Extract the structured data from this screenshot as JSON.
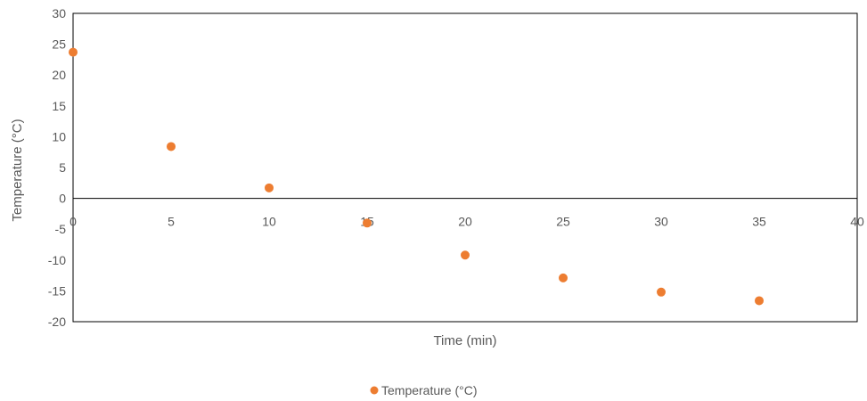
{
  "chart_data": {
    "type": "scatter",
    "title": "",
    "xlabel": "Time (min)",
    "ylabel": "Temperature (°C)",
    "xlim": [
      0,
      40
    ],
    "ylim": [
      -20,
      30
    ],
    "x_ticks": [
      "0",
      "5",
      "10",
      "15",
      "20",
      "25",
      "30",
      "35",
      "40"
    ],
    "y_ticks": [
      "30",
      "25",
      "20",
      "15",
      "10",
      "5",
      "0",
      "-5",
      "-10",
      "-15",
      "-20"
    ],
    "grid": false,
    "legend_position": "bottom",
    "series": [
      {
        "name": "Temperature (°C)",
        "color": "#ED7D31",
        "x": [
          0,
          5,
          10,
          15,
          20,
          25,
          30,
          35
        ],
        "y": [
          23.7,
          8.4,
          1.7,
          -4.0,
          -9.2,
          -12.9,
          -15.2,
          -16.6
        ]
      }
    ]
  }
}
